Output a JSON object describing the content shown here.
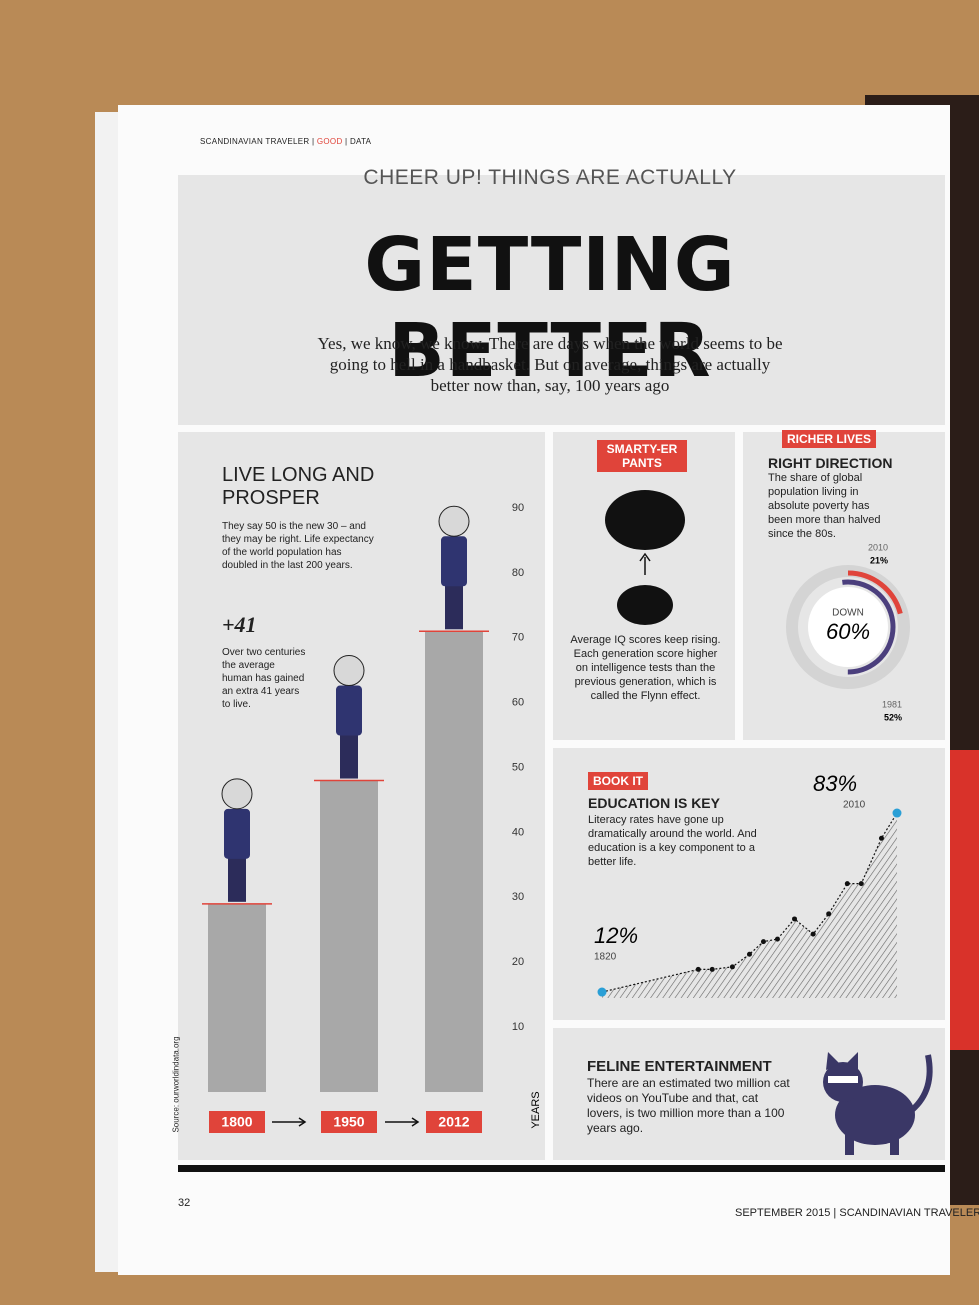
{
  "header": {
    "publication": "SCANDINAVIAN TRAVELER",
    "section": "GOOD",
    "subsection": "DATA"
  },
  "kicker": "CHEER UP! THINGS ARE ACTUALLY",
  "title": "GETTING BETTER",
  "intro": "Yes, we know, we know. There are days when the world seems to be going to hell in a handbasket. But on average, things are actually better now than, say, 100 years ago",
  "life": {
    "heading": "LIVE LONG AND PROSPER",
    "text": "They say 50 is the new 30 – and they may be right. Life expectancy of the world population has doubled in the last 200 years.",
    "stat": "+41",
    "stat_text": "Over two centuries the average human has gained an extra 41 years to live.",
    "source": "Source: ourworldindata.org"
  },
  "smarty": {
    "tag": "SMARTY-ER PANTS",
    "text": "Average IQ scores keep rising. Each generation score higher on intelligence tests than the previous generation, which is called the Flynn effect."
  },
  "richer": {
    "tag": "RICHER LIVES",
    "heading": "RIGHT DIRECTION",
    "text": "The share of global population living in absolute poverty has been more than halved since the 80s."
  },
  "book": {
    "tag": "BOOK IT",
    "heading": "EDUCATION IS KEY",
    "text": "Literacy rates have gone up dramatically around the world. And education is a key component to a better life."
  },
  "feline": {
    "heading": "FELINE ENTERTAINMENT",
    "text": "There are an estimated two million cat videos on YouTube and that, cat lovers, is two million more than a 100 years ago."
  },
  "footer": {
    "page": "32",
    "date": "SEPTEMBER 2015",
    "publication": "SCANDINAVIAN TRAVELER"
  },
  "chart_data": [
    {
      "type": "bar",
      "categories": [
        "1800",
        "1950",
        "2012"
      ],
      "values": [
        29,
        48,
        71
      ],
      "ylim": [
        0,
        90
      ],
      "yticks": [
        10,
        20,
        30,
        40,
        50,
        60,
        70,
        80,
        90
      ],
      "y_label": "YEARS",
      "color": "#a8a8a8",
      "label_color": "#e0443a"
    },
    {
      "type": "donut",
      "center_label": "DOWN",
      "center_value": "60%",
      "series": [
        {
          "name": "2010",
          "value": 21,
          "label": "21%",
          "color": "#e0443a"
        },
        {
          "name": "1981",
          "value": 52,
          "label": "52%",
          "color": "#4b3f7d"
        }
      ]
    },
    {
      "type": "line",
      "x": [
        1820,
        1882,
        1891,
        1904,
        1915,
        1924,
        1933,
        1944,
        1956,
        1966,
        1978,
        1987,
        2000,
        2010
      ],
      "values": [
        12,
        21,
        21,
        22,
        27,
        32,
        33,
        41,
        35,
        43,
        55,
        55,
        73,
        83
      ],
      "color": "#2a9fd6",
      "annotations": [
        {
          "value_label": "12%",
          "x_label": "1820"
        },
        {
          "value_label": "83%",
          "x_label": "2010"
        }
      ]
    }
  ]
}
